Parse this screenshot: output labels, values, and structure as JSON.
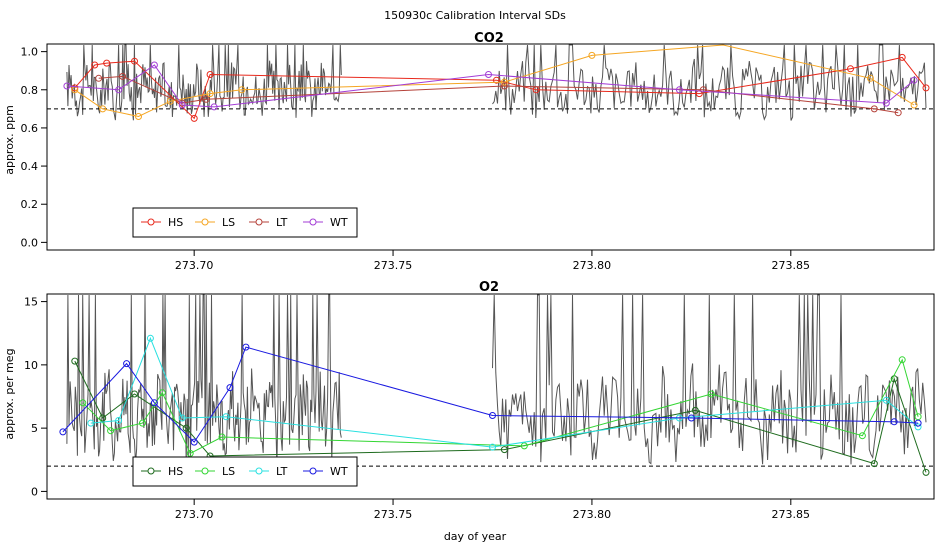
{
  "page_title": "150930c   Calibration Interval SDs",
  "xlabel": "day of year",
  "x_ticks": [
    "273.70",
    "273.75",
    "273.80",
    "273.85"
  ],
  "chart_data": [
    {
      "type": "line",
      "title": "CO2",
      "ylabel": "approx. ppm",
      "xlim": [
        273.663,
        273.886
      ],
      "ylim": [
        -0.04,
        1.04
      ],
      "y_ticks": [
        "0.0",
        "0.2",
        "0.4",
        "0.6",
        "0.8",
        "1.0"
      ],
      "reference_line": 0.7,
      "legend": [
        "HS",
        "LS",
        "LT",
        "WT"
      ],
      "background_series": {
        "color": "#555555",
        "note": "grey trace of interval SDs",
        "segments": [
          [
            273.668,
            273.737
          ],
          [
            273.775,
            273.884
          ]
        ],
        "base": 0.8,
        "amp": 0.12
      },
      "series": [
        {
          "name": "HS",
          "color": "#e8291c",
          "x": [
            273.67,
            273.675,
            273.678,
            273.685,
            273.7,
            273.704,
            273.776,
            273.786,
            273.827,
            273.865,
            273.878,
            273.884
          ],
          "y": [
            0.81,
            0.93,
            0.94,
            0.95,
            0.65,
            0.88,
            0.85,
            0.8,
            0.78,
            0.91,
            0.97,
            0.81
          ]
        },
        {
          "name": "LS",
          "color": "#f5a623",
          "x": [
            273.67,
            273.677,
            273.686,
            273.694,
            273.704,
            273.712,
            273.778,
            273.8,
            273.833,
            273.87,
            273.881
          ],
          "y": [
            0.8,
            0.7,
            0.66,
            0.74,
            0.78,
            0.8,
            0.84,
            0.98,
            1.06,
            0.86,
            0.72
          ]
        },
        {
          "name": "LT",
          "color": "#b5423a",
          "x": [
            273.676,
            273.682,
            273.697,
            273.703,
            273.778,
            273.828,
            273.871,
            273.877
          ],
          "y": [
            0.86,
            0.87,
            0.73,
            0.75,
            0.82,
            0.8,
            0.7,
            0.68
          ]
        },
        {
          "name": "WT",
          "color": "#a33dd6",
          "x": [
            273.668,
            273.681,
            273.69,
            273.697,
            273.705,
            273.774,
            273.822,
            273.874,
            273.881
          ],
          "y": [
            0.82,
            0.8,
            0.93,
            0.72,
            0.71,
            0.88,
            0.8,
            0.73,
            0.85
          ]
        }
      ]
    },
    {
      "type": "line",
      "title": "O2",
      "ylabel": "approx. per meg",
      "xlim": [
        273.663,
        273.886
      ],
      "ylim": [
        -0.6,
        15.6
      ],
      "y_ticks": [
        "0",
        "5",
        "10",
        "15"
      ],
      "reference_line": 2,
      "legend": [
        "HS",
        "LS",
        "LT",
        "WT"
      ],
      "background_series": {
        "color": "#555555",
        "note": "grey trace of interval SDs",
        "segments": [
          [
            273.668,
            273.737
          ],
          [
            273.775,
            273.884
          ]
        ],
        "base": 6.0,
        "amp": 3.0
      },
      "series": [
        {
          "name": "HS",
          "color": "#1e6b1e",
          "x": [
            273.67,
            273.677,
            273.685,
            273.698,
            273.704,
            273.778,
            273.826,
            273.871,
            273.876,
            273.884
          ],
          "y": [
            10.3,
            5.8,
            7.7,
            5.0,
            2.8,
            3.3,
            6.4,
            2.2,
            8.9,
            1.5
          ]
        },
        {
          "name": "LS",
          "color": "#33d633",
          "x": [
            273.672,
            273.679,
            273.687,
            273.692,
            273.699,
            273.707,
            273.783,
            273.83,
            273.868,
            273.878,
            273.882
          ],
          "y": [
            7.0,
            4.8,
            5.4,
            7.8,
            3.0,
            4.3,
            3.6,
            7.7,
            4.4,
            10.4,
            5.9
          ]
        },
        {
          "name": "LT",
          "color": "#29e0e0",
          "x": [
            273.674,
            273.681,
            273.689,
            273.697,
            273.708,
            273.775,
            273.822,
            273.874,
            273.882
          ],
          "y": [
            5.4,
            5.6,
            12.1,
            5.8,
            5.9,
            3.5,
            5.8,
            7.2,
            5.1
          ]
        },
        {
          "name": "WT",
          "color": "#1a1ae0",
          "x": [
            273.667,
            273.683,
            273.69,
            273.7,
            273.709,
            273.713,
            273.775,
            273.825,
            273.876,
            273.882
          ],
          "y": [
            4.7,
            10.1,
            7.0,
            3.9,
            8.2,
            11.4,
            6.0,
            5.8,
            5.5,
            5.4
          ]
        }
      ]
    }
  ]
}
